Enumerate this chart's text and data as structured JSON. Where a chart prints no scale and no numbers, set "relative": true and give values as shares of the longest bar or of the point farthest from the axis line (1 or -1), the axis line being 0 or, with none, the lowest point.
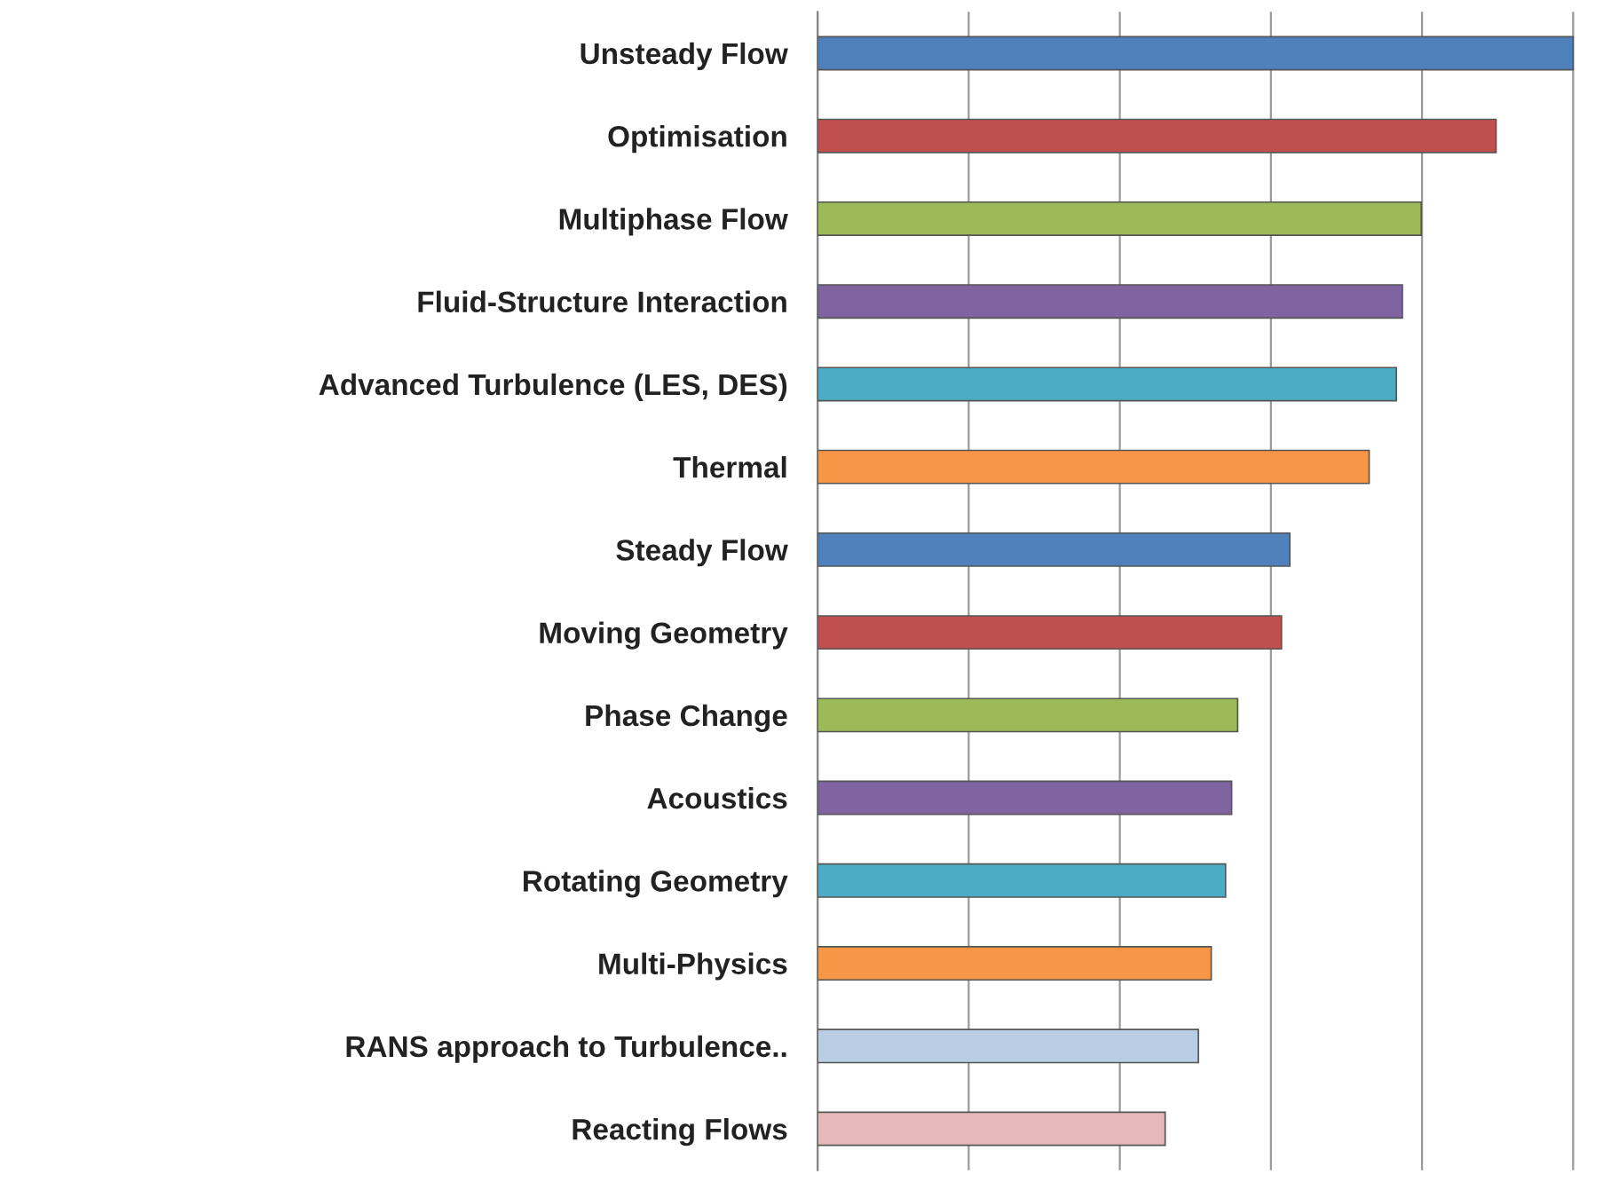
{
  "chart_data": {
    "type": "bar",
    "orientation": "horizontal",
    "relative": true,
    "grid": "x",
    "tick_labels": "y",
    "categories": [
      "Unsteady Flow",
      "Optimisation",
      "Multiphase Flow",
      "Fluid-Structure Interaction",
      "Advanced Turbulence (LES, DES)",
      "Thermal",
      "Steady Flow",
      "Moving Geometry",
      "Phase Change",
      "Acoustics",
      "Rotating Geometry",
      "Multi-Physics",
      "RANS approach to Turbulence..",
      "Reacting Flows"
    ],
    "values": [
      1,
      0.898,
      0.799,
      0.774,
      0.766,
      0.73,
      0.625,
      0.614,
      0.556,
      0.548,
      0.54,
      0.521,
      0.504,
      0.46
    ],
    "colors": [
      "#4f81bd",
      "#c0504d",
      "#9bbb59",
      "#8064a2",
      "#4bacc6",
      "#f79646",
      "#4f81bd",
      "#c0504d",
      "#9bbb59",
      "#8064a2",
      "#4bacc6",
      "#f79646",
      "#b9cde5",
      "#e6b9b8"
    ]
  }
}
